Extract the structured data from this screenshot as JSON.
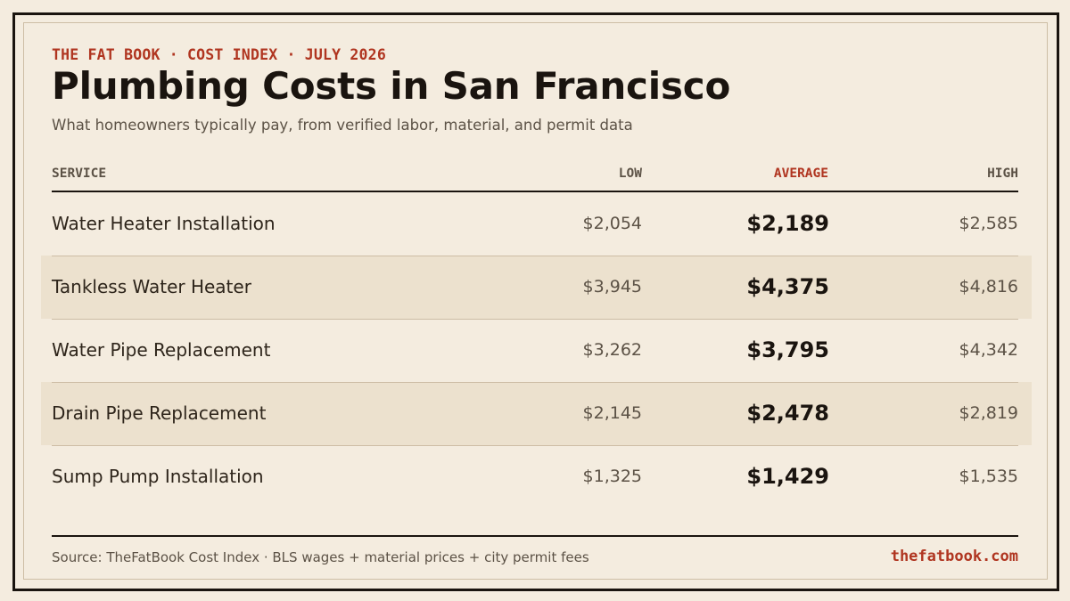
{
  "header": {
    "kicker": "THE FAT BOOK · COST INDEX · JULY 2026",
    "title": "Plumbing Costs in San Francisco",
    "subtitle": "What homeowners typically pay, from verified labor, material, and permit data"
  },
  "table": {
    "columns": {
      "service": "SERVICE",
      "low": "LOW",
      "average": "AVERAGE",
      "high": "HIGH"
    },
    "rows": [
      {
        "service": "Water Heater Installation",
        "low": "$2,054",
        "average": "$2,189",
        "high": "$2,585"
      },
      {
        "service": "Tankless Water Heater",
        "low": "$3,945",
        "average": "$4,375",
        "high": "$4,816"
      },
      {
        "service": "Water Pipe Replacement",
        "low": "$3,262",
        "average": "$3,795",
        "high": "$4,342"
      },
      {
        "service": "Drain Pipe Replacement",
        "low": "$2,145",
        "average": "$2,478",
        "high": "$2,819"
      },
      {
        "service": "Sump Pump Installation",
        "low": "$1,325",
        "average": "$1,429",
        "high": "$1,535"
      }
    ]
  },
  "footer": {
    "source": "Source: TheFatBook Cost Index · BLS wages + material prices + city permit fees",
    "site": "thefatbook.com"
  },
  "colors": {
    "background": "#f4ecdf",
    "accent": "#b03520",
    "ink": "#1a140f",
    "muted": "#5c5246",
    "row_shade": "#ece1ce"
  }
}
